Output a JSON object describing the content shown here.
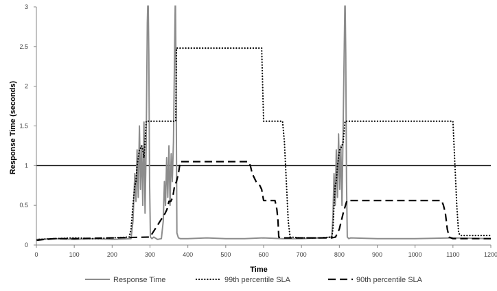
{
  "chart_data": {
    "type": "line",
    "title": "",
    "xlabel": "Time",
    "ylabel": "Response Time (seconds)",
    "xlim": [
      0,
      1200
    ],
    "ylim": [
      0,
      3
    ],
    "x_ticks": [
      "0",
      "100",
      "200",
      "300",
      "400",
      "500",
      "600",
      "700",
      "800",
      "900",
      "1000",
      "1100",
      "1200"
    ],
    "y_ticks": [
      "0",
      "0.5",
      "1",
      "1.5",
      "2",
      "2.5",
      "3"
    ],
    "grid": false,
    "legend_position": "bottom",
    "reference_line": {
      "y": 1.0,
      "color": "#000000"
    },
    "series": [
      {
        "name": "Response Time",
        "color": "#8c8c8c",
        "style": "solid",
        "x": [
          0,
          50,
          100,
          150,
          200,
          250,
          255,
          260,
          263,
          266,
          269,
          272,
          275,
          278,
          281,
          284,
          287,
          290,
          293,
          295,
          297,
          299,
          301,
          305,
          310,
          320,
          330,
          335,
          338,
          341,
          344,
          347,
          350,
          353,
          356,
          359,
          362,
          365,
          367,
          369,
          371,
          375,
          380,
          400,
          450,
          500,
          550,
          600,
          650,
          700,
          750,
          780,
          783,
          786,
          789,
          792,
          795,
          798,
          801,
          804,
          807,
          810,
          813,
          815,
          817,
          819,
          821,
          825,
          830,
          900,
          1000,
          1100,
          1200
        ],
        "y": [
          0.07,
          0.08,
          0.07,
          0.08,
          0.07,
          0.08,
          0.3,
          0.9,
          0.55,
          1.2,
          0.6,
          1.5,
          0.7,
          1.25,
          0.5,
          1.55,
          0.4,
          1.3,
          2.8,
          3.2,
          2.4,
          0.8,
          0.1,
          0.08,
          0.1,
          0.07,
          0.08,
          0.3,
          0.8,
          0.5,
          1.1,
          0.6,
          1.25,
          0.5,
          1.15,
          0.8,
          1.3,
          2.5,
          3.2,
          2.0,
          0.15,
          0.09,
          0.08,
          0.08,
          0.09,
          0.08,
          0.08,
          0.09,
          0.08,
          0.08,
          0.09,
          0.1,
          0.35,
          0.9,
          0.5,
          1.2,
          0.6,
          1.4,
          0.7,
          1.25,
          0.5,
          1.5,
          2.5,
          3.2,
          2.4,
          0.8,
          0.1,
          0.08,
          0.09,
          0.08,
          0.08,
          0.09,
          0.08
        ]
      },
      {
        "name": "99th percentile SLA",
        "color": "#000000",
        "style": "dotted",
        "x": [
          0,
          50,
          100,
          150,
          200,
          245,
          250,
          255,
          260,
          263,
          266,
          269,
          272,
          275,
          278,
          281,
          284,
          287,
          290,
          293,
          296,
          300,
          305,
          310,
          315,
          320,
          330,
          340,
          345,
          350,
          355,
          360,
          365,
          368,
          370,
          375,
          380,
          390,
          400,
          500,
          580,
          595,
          600,
          610,
          620,
          630,
          640,
          650,
          655,
          660,
          665,
          670,
          700,
          750,
          780,
          783,
          786,
          789,
          792,
          795,
          798,
          801,
          804,
          807,
          810,
          815,
          820,
          900,
          1000,
          1100,
          1110,
          1115,
          1120,
          1200
        ],
        "y": [
          0.07,
          0.08,
          0.09,
          0.08,
          0.09,
          0.1,
          0.2,
          0.5,
          0.75,
          0.8,
          1.0,
          1.1,
          1.2,
          1.22,
          1.25,
          1.2,
          1.1,
          1.3,
          1.56,
          1.56,
          1.56,
          1.56,
          1.56,
          1.56,
          1.56,
          1.56,
          1.56,
          1.56,
          1.56,
          1.56,
          1.56,
          1.56,
          1.56,
          1.56,
          2.48,
          2.48,
          2.48,
          2.48,
          2.48,
          2.48,
          2.48,
          2.48,
          1.56,
          1.56,
          1.56,
          1.56,
          1.56,
          1.56,
          1.3,
          0.8,
          0.3,
          0.1,
          0.09,
          0.09,
          0.1,
          0.2,
          0.5,
          0.75,
          0.8,
          1.0,
          1.1,
          1.2,
          1.22,
          1.25,
          1.3,
          1.56,
          1.56,
          1.56,
          1.56,
          1.56,
          0.5,
          0.15,
          0.12,
          0.12
        ]
      },
      {
        "name": "90th percentile SLA",
        "color": "#000000",
        "style": "dashed",
        "x": [
          0,
          20,
          50,
          100,
          200,
          300,
          340,
          345,
          350,
          355,
          360,
          365,
          370,
          375,
          380,
          400,
          500,
          560,
          565,
          570,
          580,
          590,
          595,
          600,
          610,
          620,
          630,
          635,
          638,
          640,
          650,
          700,
          780,
          790,
          800,
          810,
          815,
          820,
          900,
          1000,
          1070,
          1075,
          1080,
          1085,
          1090,
          1100,
          1200
        ],
        "y": [
          0.06,
          0.07,
          0.08,
          0.08,
          0.09,
          0.1,
          0.4,
          0.45,
          0.55,
          0.55,
          0.6,
          0.75,
          0.8,
          0.9,
          1.05,
          1.05,
          1.05,
          1.05,
          1.0,
          0.9,
          0.8,
          0.75,
          0.7,
          0.56,
          0.56,
          0.56,
          0.56,
          0.45,
          0.3,
          0.1,
          0.09,
          0.09,
          0.09,
          0.1,
          0.2,
          0.4,
          0.48,
          0.56,
          0.56,
          0.56,
          0.56,
          0.5,
          0.4,
          0.2,
          0.1,
          0.08,
          0.08
        ]
      }
    ]
  }
}
